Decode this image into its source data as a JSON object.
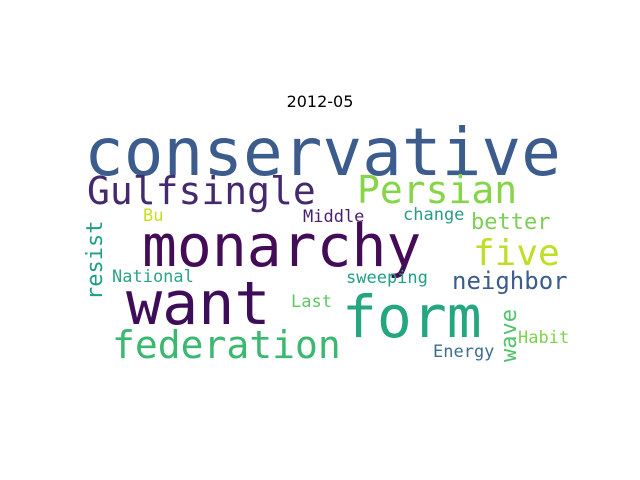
{
  "chart_data": {
    "type": "wordcloud",
    "title": "2012-05",
    "words": [
      {
        "text": "conservative",
        "weight": 1.0,
        "color": "#3b5c8c",
        "rotate": 0
      },
      {
        "text": "monarchy",
        "weight": 0.92,
        "color": "#440b57",
        "rotate": 0
      },
      {
        "text": "want",
        "weight": 0.9,
        "color": "#3d0d5a",
        "rotate": 0
      },
      {
        "text": "form",
        "weight": 0.88,
        "color": "#24a77e",
        "rotate": 0
      },
      {
        "text": "federation",
        "weight": 0.62,
        "color": "#3ab86f",
        "rotate": 0
      },
      {
        "text": "Gulfsingle",
        "weight": 0.58,
        "color": "#45296e",
        "rotate": 0
      },
      {
        "text": "Persian",
        "weight": 0.58,
        "color": "#86d549",
        "rotate": 0
      },
      {
        "text": "five",
        "weight": 0.55,
        "color": "#bddf26",
        "rotate": 0
      },
      {
        "text": "neighbor",
        "weight": 0.38,
        "color": "#3b5c8c",
        "rotate": 0
      },
      {
        "text": "better",
        "weight": 0.34,
        "color": "#7ccf55",
        "rotate": 0
      },
      {
        "text": "resist",
        "weight": 0.34,
        "color": "#1f9e89",
        "rotate": -90
      },
      {
        "text": "wave",
        "weight": 0.34,
        "color": "#50c46a",
        "rotate": -90
      },
      {
        "text": "change",
        "weight": 0.28,
        "color": "#2a9a8a",
        "rotate": 0
      },
      {
        "text": "sweeping",
        "weight": 0.28,
        "color": "#1fa088",
        "rotate": 0
      },
      {
        "text": "National",
        "weight": 0.28,
        "color": "#2da28a",
        "rotate": 0
      },
      {
        "text": "Middle",
        "weight": 0.26,
        "color": "#4b1f6f",
        "rotate": 0
      },
      {
        "text": "Last",
        "weight": 0.26,
        "color": "#5ec962",
        "rotate": 0
      },
      {
        "text": "Energy",
        "weight": 0.26,
        "color": "#3e6d8e",
        "rotate": 0
      },
      {
        "text": "Habit",
        "weight": 0.26,
        "color": "#7fd34e",
        "rotate": 0
      },
      {
        "text": "Bu",
        "weight": 0.26,
        "color": "#c9e020",
        "rotate": 0
      }
    ]
  }
}
